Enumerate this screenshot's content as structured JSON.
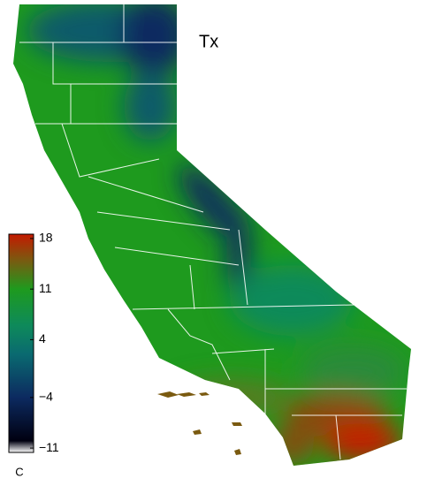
{
  "map": {
    "title": "Tx",
    "colorbar": {
      "unit": "C",
      "lim": [
        -11.6,
        18.6
      ],
      "ticks": [
        18,
        11,
        4,
        {
          "value": -4,
          "label": "−4"
        },
        {
          "value": -11,
          "label": "−11"
        }
      ],
      "stops": [
        {
          "value": 18.6,
          "color": "#c41a00"
        },
        {
          "value": 15,
          "color": "#7a5a10"
        },
        {
          "value": 11,
          "color": "#1e9a1e"
        },
        {
          "value": 6,
          "color": "#0e8a5a"
        },
        {
          "value": 2,
          "color": "#0a6a70"
        },
        {
          "value": -4,
          "color": "#0c2a60"
        },
        {
          "value": -10,
          "color": "#000010"
        },
        {
          "value": -11.6,
          "color": "#ffffff"
        }
      ]
    }
  }
}
